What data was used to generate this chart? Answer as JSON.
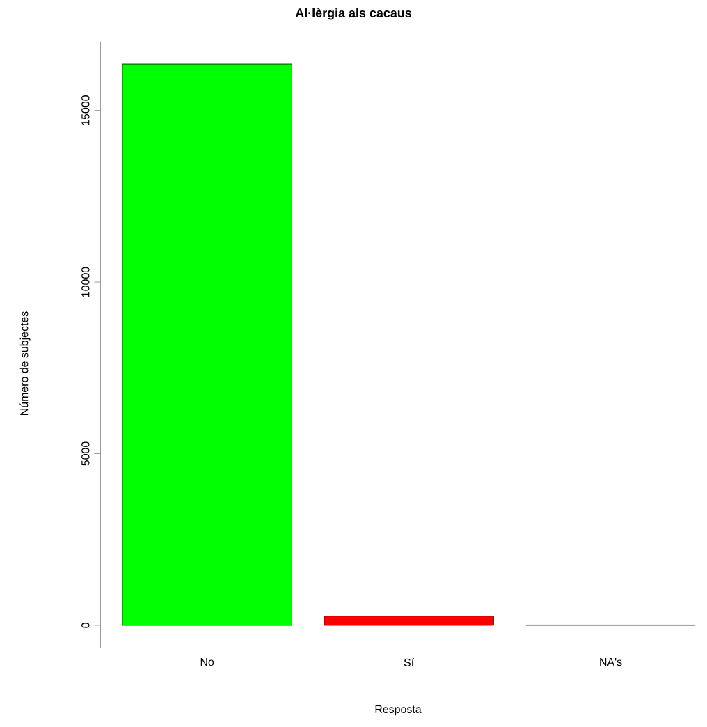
{
  "chart_data": {
    "type": "bar",
    "title": "Al·lèrgia als cacaus",
    "xlabel": "Resposta",
    "ylabel": "Número de subjectes",
    "categories": [
      "No",
      "Sí",
      "NA's"
    ],
    "values": [
      16350,
      270,
      10
    ],
    "colors": [
      "#00ff00",
      "#ff0000",
      "#000000"
    ],
    "ylim": [
      -650,
      17000
    ],
    "yticks": [
      0,
      5000,
      10000,
      15000
    ]
  }
}
